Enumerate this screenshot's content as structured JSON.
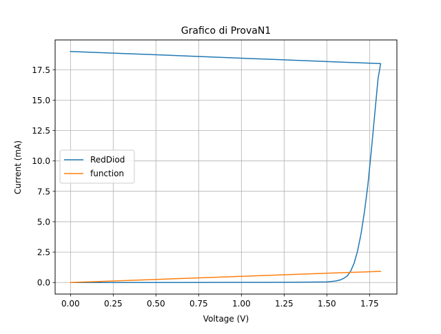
{
  "chart_data": {
    "type": "line",
    "title": "Grafico di ProvaN1",
    "xlabel": "Voltage (V)",
    "ylabel": "Current (mA)",
    "xlim": [
      -0.09,
      1.91
    ],
    "ylim": [
      -0.95,
      19.95
    ],
    "grid": true,
    "legend_position": "center-left",
    "xticks": [
      0.0,
      0.25,
      0.5,
      0.75,
      1.0,
      1.25,
      1.5,
      1.75
    ],
    "xtick_labels": [
      "0.00",
      "0.25",
      "0.50",
      "0.75",
      "1.00",
      "1.25",
      "1.50",
      "1.75"
    ],
    "yticks": [
      0.0,
      2.5,
      5.0,
      7.5,
      10.0,
      12.5,
      15.0,
      17.5
    ],
    "ytick_labels": [
      "0.0",
      "2.5",
      "5.0",
      "7.5",
      "10.0",
      "12.5",
      "15.0",
      "17.5"
    ],
    "series": [
      {
        "name": "RedDiod",
        "color": "#1f77b4",
        "x": [
          0.0,
          0.5,
          1.0,
          1.3,
          1.5,
          1.55,
          1.58,
          1.6,
          1.62,
          1.64,
          1.66,
          1.68,
          1.7,
          1.72,
          1.74,
          1.76,
          1.78,
          1.8,
          1.815,
          1.0,
          0.5,
          0.0
        ],
        "y": [
          0.0,
          0.0,
          0.01,
          0.02,
          0.05,
          0.12,
          0.22,
          0.35,
          0.55,
          0.95,
          1.6,
          2.6,
          4.0,
          5.8,
          8.0,
          10.8,
          13.8,
          16.8,
          18.0,
          18.45,
          18.73,
          19.0
        ]
      },
      {
        "name": "function",
        "color": "#ff7f0e",
        "x": [
          0.0,
          1.815
        ],
        "y": [
          0.0,
          0.92
        ]
      }
    ]
  }
}
